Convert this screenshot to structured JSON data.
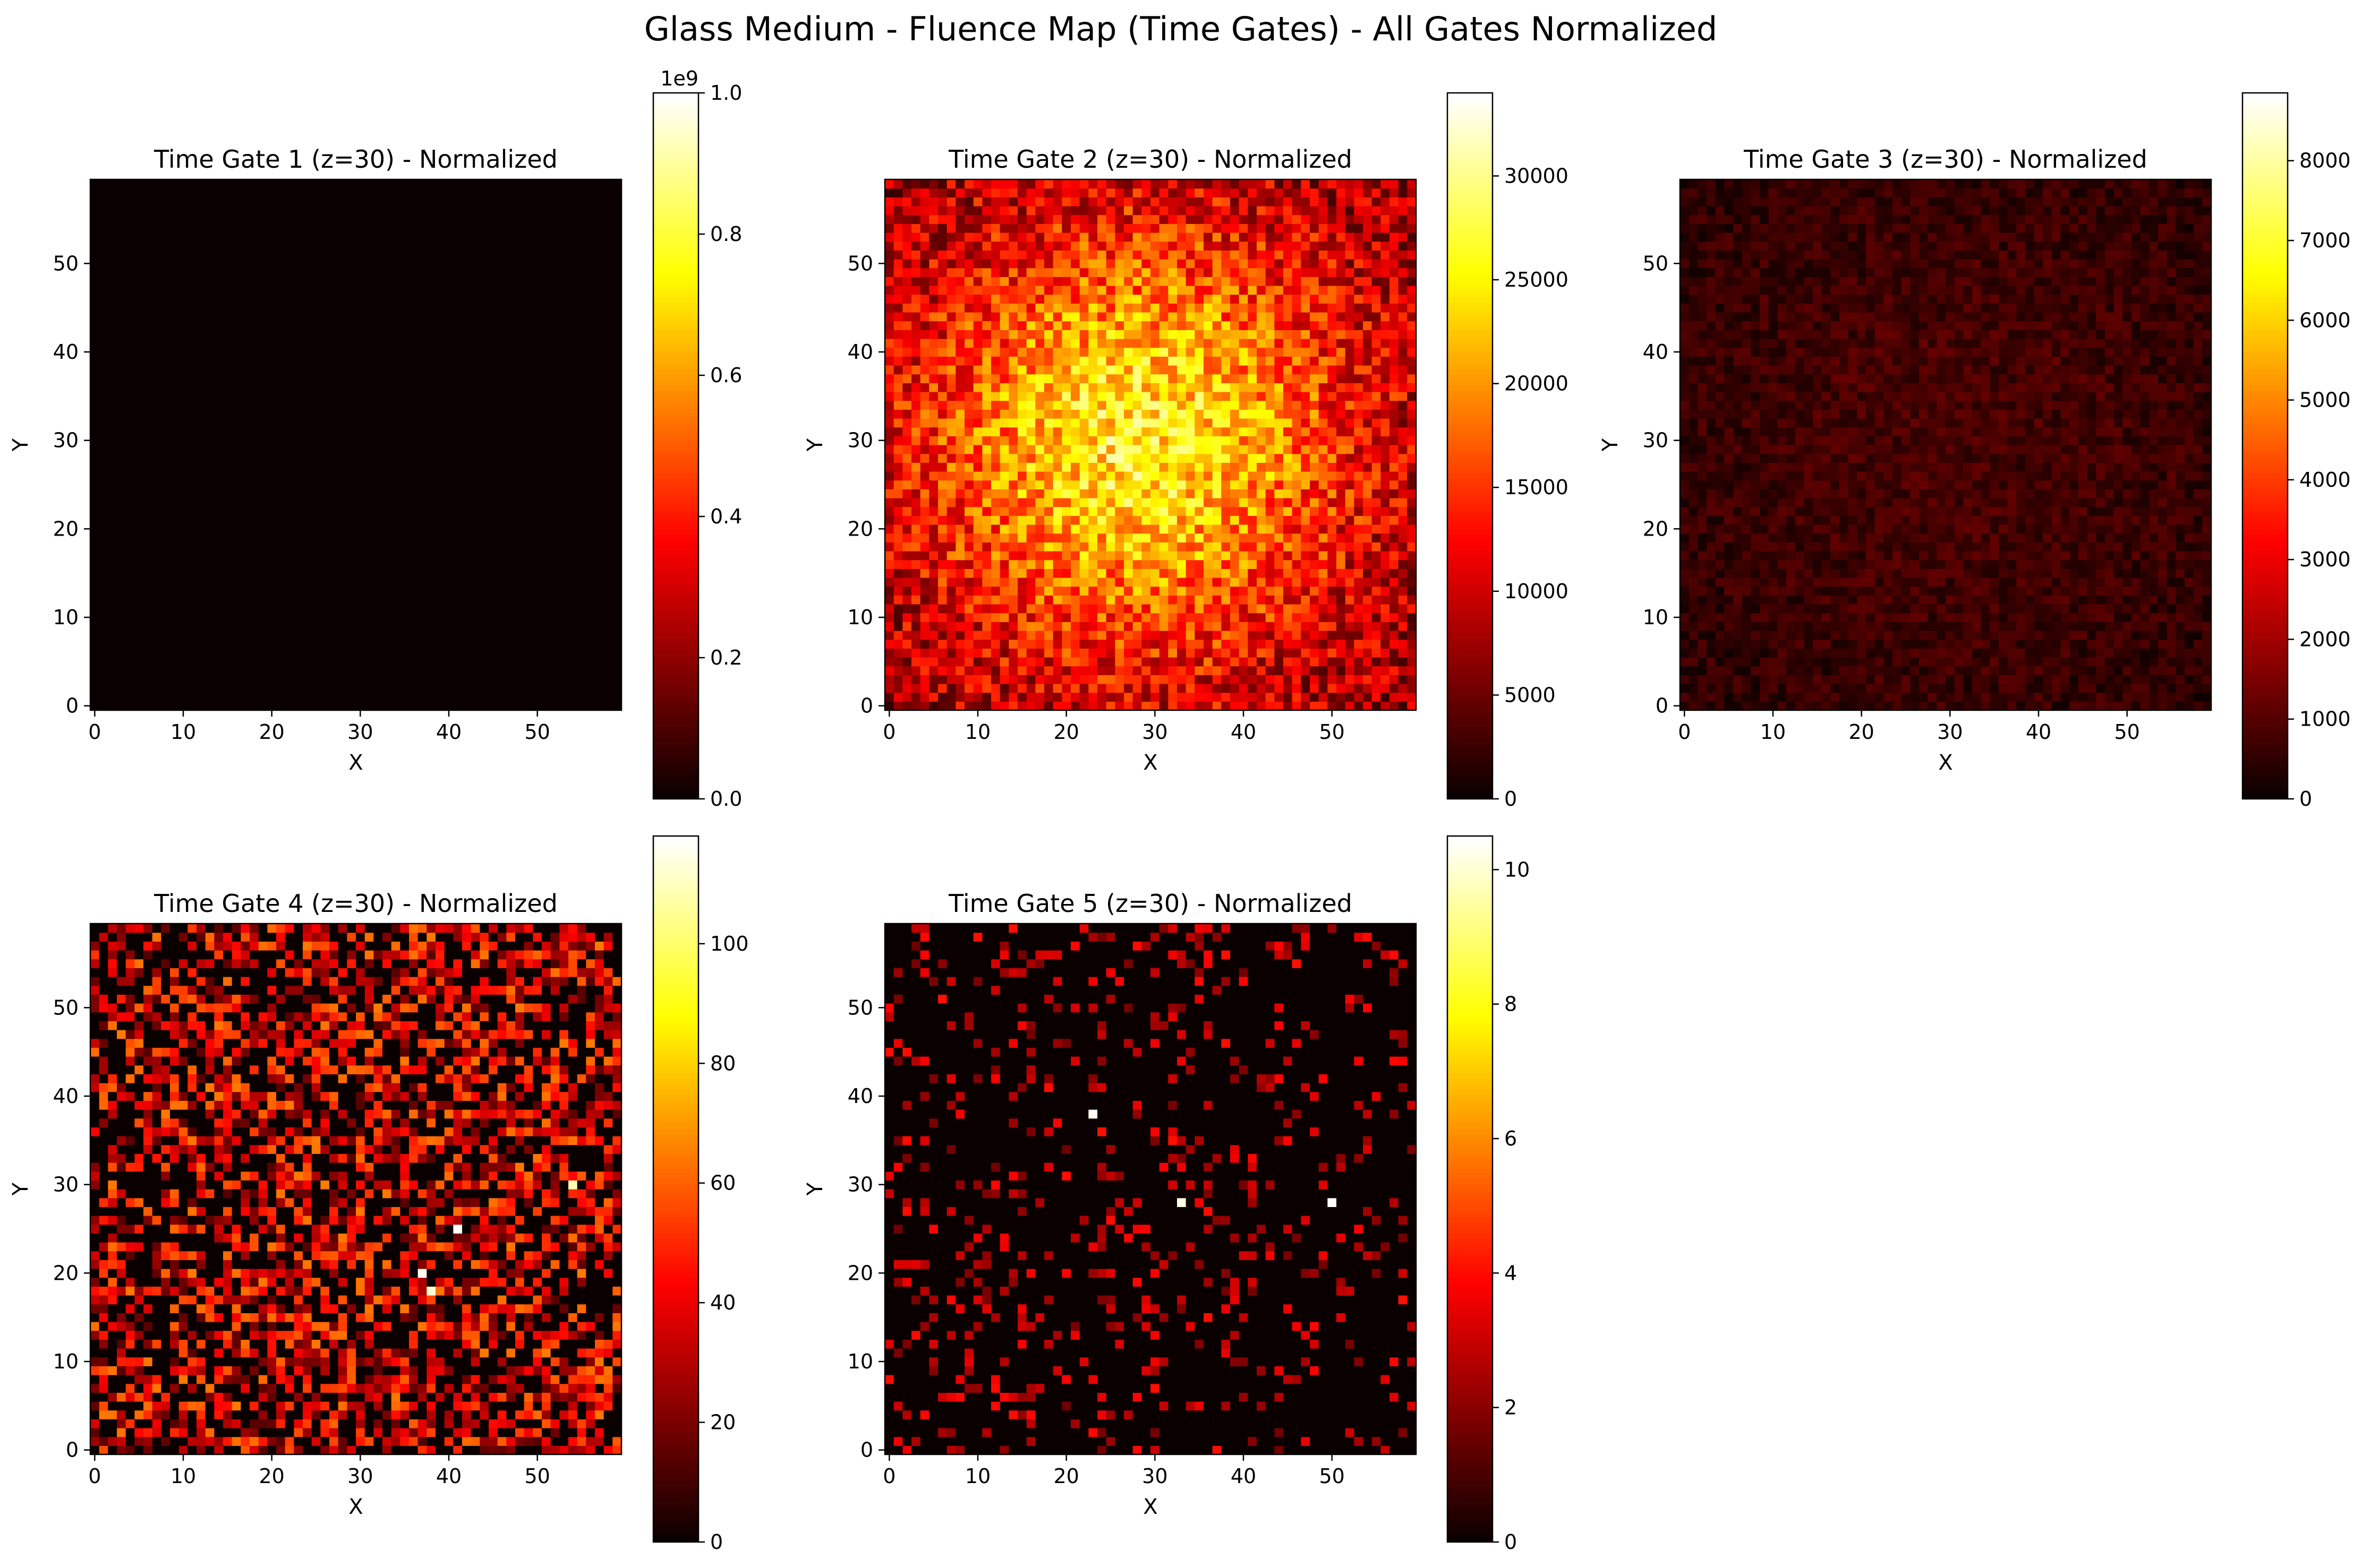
{
  "figure": {
    "title": "Glass Medium - Fluence Map (Time Gates) - All Gates Normalized"
  },
  "colormap": {
    "name": "hot",
    "stops": [
      "#0b0000",
      "#ff0000",
      "#ffff00",
      "#ffffff"
    ]
  },
  "chart_data": [
    {
      "type": "heatmap",
      "title": "Time Gate 1 (z=30) - Normalized",
      "xlabel": "X",
      "ylabel": "Y",
      "grid_size": [
        60,
        60
      ],
      "xlim": [
        0,
        60
      ],
      "ylim": [
        0,
        60
      ],
      "xticks": [
        0,
        10,
        20,
        30,
        40,
        50
      ],
      "yticks": [
        0,
        10,
        20,
        30,
        40,
        50
      ],
      "colorbar": {
        "vmin": 0,
        "vmax": 1.0,
        "ticks": [
          "0.0",
          "0.2",
          "0.4",
          "0.6",
          "0.8",
          "1.0"
        ],
        "tick_values": [
          0,
          0.2,
          0.4,
          0.6,
          0.8,
          1.0
        ],
        "offset_text": "1e9"
      },
      "pattern": {
        "kind": "uniform",
        "level": 0.0
      }
    },
    {
      "type": "heatmap",
      "title": "Time Gate 2 (z=30) - Normalized",
      "xlabel": "X",
      "ylabel": "Y",
      "grid_size": [
        60,
        60
      ],
      "xlim": [
        0,
        60
      ],
      "ylim": [
        0,
        60
      ],
      "xticks": [
        0,
        10,
        20,
        30,
        40,
        50
      ],
      "yticks": [
        0,
        10,
        20,
        30,
        40,
        50
      ],
      "colorbar": {
        "vmin": 0,
        "vmax": 34000,
        "ticks": [
          "0",
          "5000",
          "10000",
          "15000",
          "20000",
          "25000",
          "30000"
        ],
        "tick_values": [
          0,
          5000,
          10000,
          15000,
          20000,
          25000,
          30000
        ],
        "offset_text": ""
      },
      "pattern": {
        "kind": "gaussian",
        "center": [
          28,
          30
        ],
        "sigma": 17,
        "base": 0.2,
        "peak": 0.55,
        "noise": 0.18,
        "seed": 2
      }
    },
    {
      "type": "heatmap",
      "title": "Time Gate 3 (z=30) - Normalized",
      "xlabel": "X",
      "ylabel": "Y",
      "grid_size": [
        60,
        60
      ],
      "xlim": [
        0,
        60
      ],
      "ylim": [
        0,
        60
      ],
      "xticks": [
        0,
        10,
        20,
        30,
        40,
        50
      ],
      "yticks": [
        0,
        10,
        20,
        30,
        40,
        50
      ],
      "colorbar": {
        "vmin": 0,
        "vmax": 8850,
        "ticks": [
          "0",
          "1000",
          "2000",
          "3000",
          "4000",
          "5000",
          "6000",
          "7000",
          "8000"
        ],
        "tick_values": [
          0,
          1000,
          2000,
          3000,
          4000,
          5000,
          6000,
          7000,
          8000
        ],
        "offset_text": ""
      },
      "pattern": {
        "kind": "gaussian",
        "center": [
          30,
          30
        ],
        "sigma": 25,
        "base": 0.04,
        "peak": 0.05,
        "noise": 0.05,
        "seed": 3
      }
    },
    {
      "type": "heatmap",
      "title": "Time Gate 4 (z=30) - Normalized",
      "xlabel": "X",
      "ylabel": "Y",
      "grid_size": [
        60,
        60
      ],
      "xlim": [
        0,
        60
      ],
      "ylim": [
        0,
        60
      ],
      "xticks": [
        0,
        10,
        20,
        30,
        40,
        50
      ],
      "yticks": [
        0,
        10,
        20,
        30,
        40,
        50
      ],
      "colorbar": {
        "vmin": 0,
        "vmax": 118,
        "ticks": [
          "0",
          "20",
          "40",
          "60",
          "80",
          "100"
        ],
        "tick_values": [
          0,
          20,
          40,
          60,
          80,
          100
        ],
        "offset_text": ""
      },
      "pattern": {
        "kind": "sparse",
        "density": 0.55,
        "mean": 0.24,
        "spread": 0.22,
        "hotspots": [
          [
            37,
            20
          ],
          [
            38,
            18
          ],
          [
            41,
            25
          ],
          [
            54,
            30
          ]
        ],
        "seed": 4
      }
    },
    {
      "type": "heatmap",
      "title": "Time Gate 5 (z=30) - Normalized",
      "xlabel": "X",
      "ylabel": "Y",
      "grid_size": [
        60,
        60
      ],
      "xlim": [
        0,
        60
      ],
      "ylim": [
        0,
        60
      ],
      "xticks": [
        0,
        10,
        20,
        30,
        40,
        50
      ],
      "yticks": [
        0,
        10,
        20,
        30,
        40,
        50
      ],
      "colorbar": {
        "vmin": 0,
        "vmax": 10.5,
        "ticks": [
          "0",
          "2",
          "4",
          "6",
          "8",
          "10"
        ],
        "tick_values": [
          0,
          2,
          4,
          6,
          8,
          10
        ],
        "offset_text": ""
      },
      "pattern": {
        "kind": "sparse",
        "density": 0.16,
        "mean": 0.22,
        "spread": 0.12,
        "hotspots": [
          [
            33,
            28
          ],
          [
            50,
            28
          ],
          [
            23,
            38
          ]
        ],
        "seed": 5
      }
    }
  ]
}
